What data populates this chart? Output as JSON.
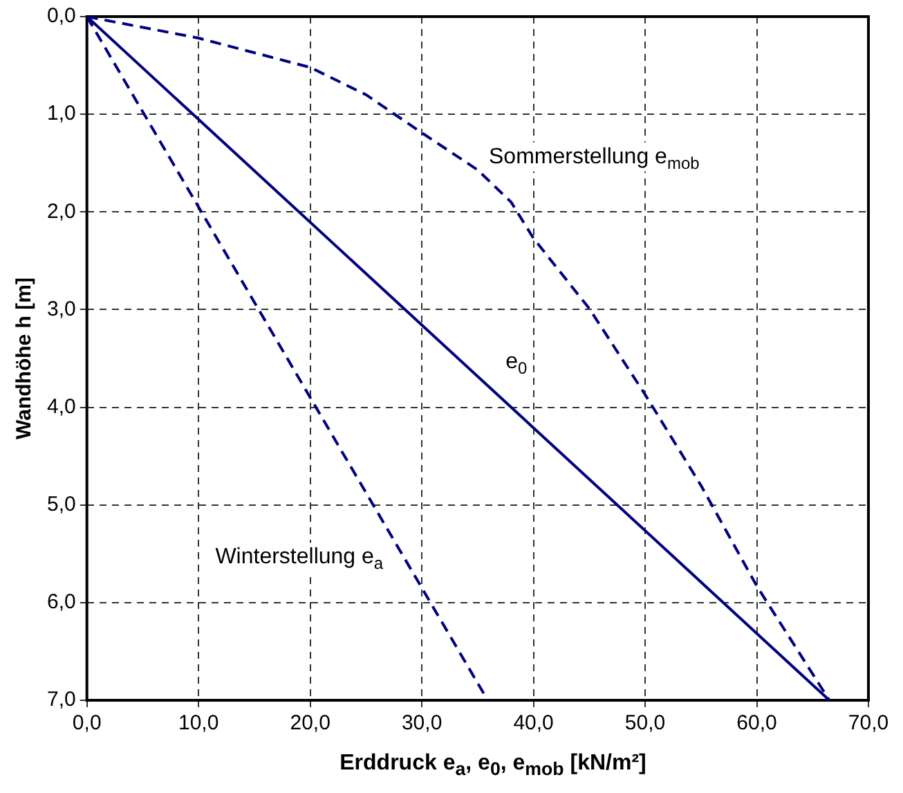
{
  "chart_data": {
    "type": "line",
    "xlabel": "Erddruck e$_{a}$, e$_{0}$, e$_{mob}$ [kN/m²]",
    "ylabel": "Wandhöhe h [m]",
    "xlim": [
      0,
      70
    ],
    "ylim": [
      7,
      0
    ],
    "xticks": [
      {
        "value": 0,
        "label": "0,0"
      },
      {
        "value": 10,
        "label": "10,0"
      },
      {
        "value": 20,
        "label": "20,0"
      },
      {
        "value": 30,
        "label": "30,0"
      },
      {
        "value": 40,
        "label": "40,0"
      },
      {
        "value": 50,
        "label": "50,0"
      },
      {
        "value": 60,
        "label": "60,0"
      },
      {
        "value": 70,
        "label": "70,0"
      }
    ],
    "yticks": [
      {
        "value": 0,
        "label": "0,0"
      },
      {
        "value": 1,
        "label": "1,0"
      },
      {
        "value": 2,
        "label": "2,0"
      },
      {
        "value": 3,
        "label": "3,0"
      },
      {
        "value": 4,
        "label": "4,0"
      },
      {
        "value": 5,
        "label": "5,0"
      },
      {
        "value": 6,
        "label": "6,0"
      },
      {
        "value": 7,
        "label": "7,0"
      }
    ],
    "grid": true,
    "legend": false,
    "marker": "none",
    "series": [
      {
        "name": "Winterstellung e$_{a}$",
        "color": "#000080",
        "line_style": "dashed",
        "x": [
          0,
          35.9
        ],
        "values": [
          0,
          7
        ]
      },
      {
        "name": "e$_{0}$",
        "color": "#000080",
        "line_style": "solid",
        "x": [
          0,
          66.5
        ],
        "values": [
          0,
          7
        ]
      },
      {
        "name": "Sommerstellung e$_{mob}$",
        "color": "#000080",
        "line_style": "dashed",
        "x": [
          0,
          10,
          20,
          25,
          30,
          35,
          38,
          40,
          45,
          50,
          55,
          60,
          66.5
        ],
        "values": [
          0,
          0.22,
          0.52,
          0.8,
          1.19,
          1.57,
          1.9,
          2.27,
          2.99,
          3.87,
          4.8,
          5.83,
          7
        ]
      }
    ]
  }
}
